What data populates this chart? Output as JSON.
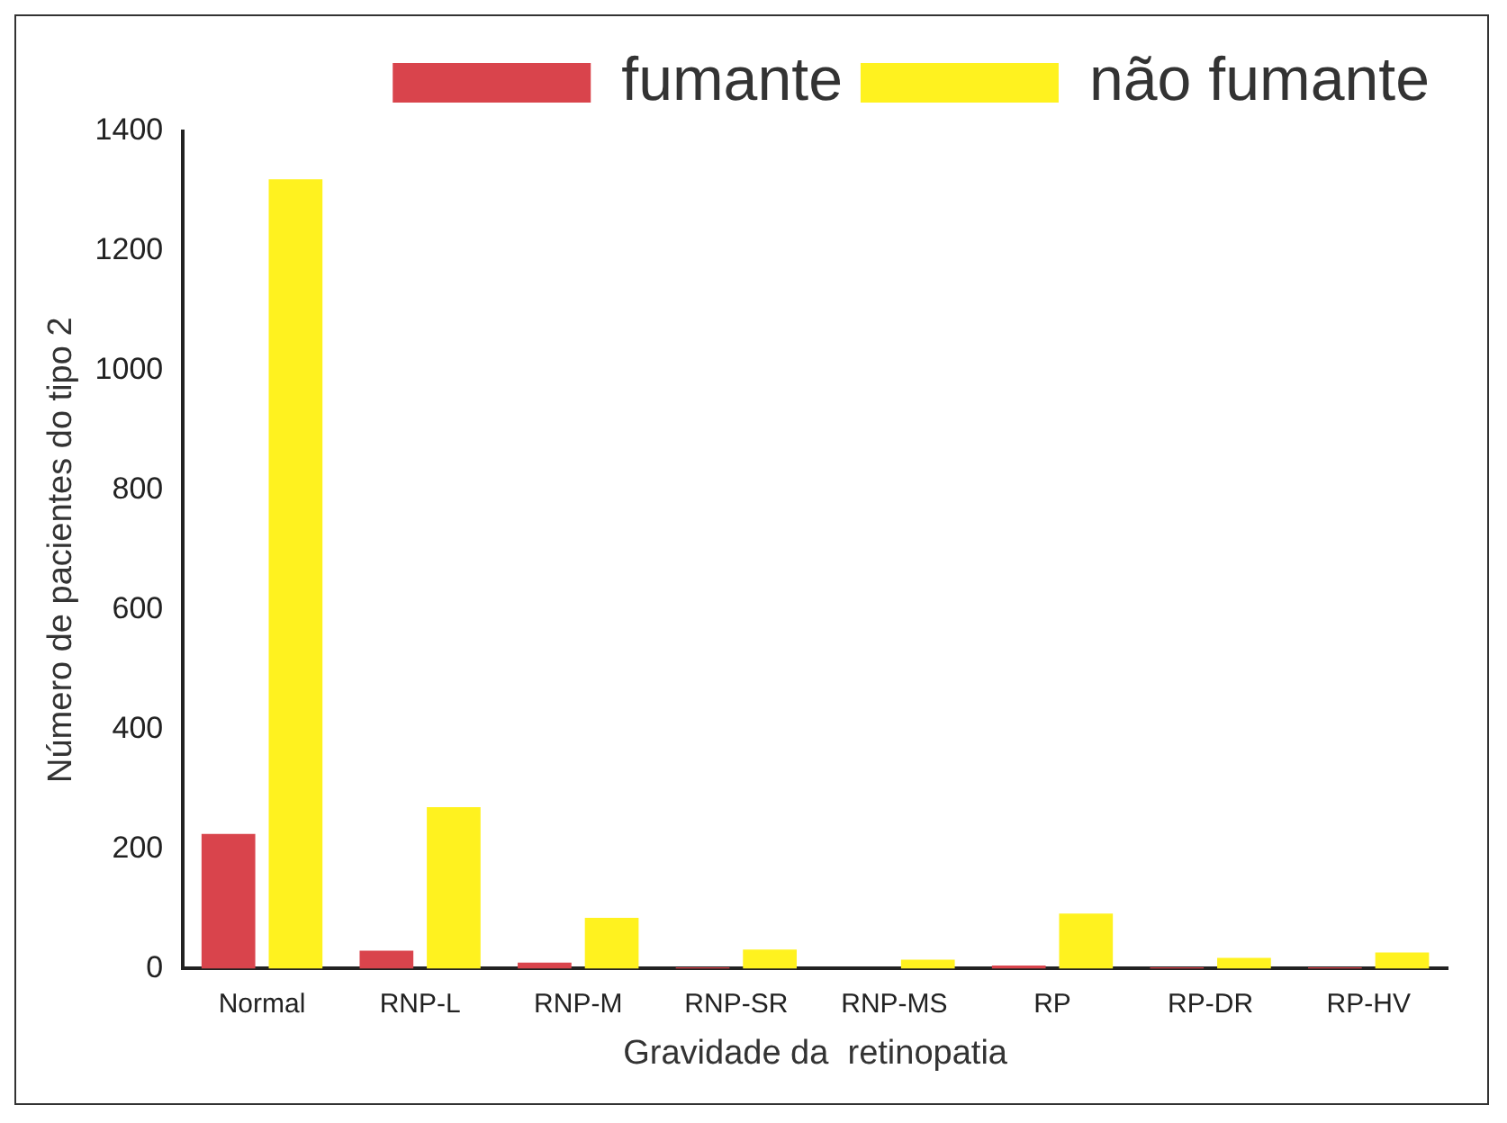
{
  "chart_data": {
    "type": "bar",
    "xlabel": "Gravidade da  retinopatia",
    "ylabel": "Número de pacientes do tipo 2",
    "categories": [
      "Normal",
      "RNP-L",
      "RNP-M",
      "RNP-SR",
      "RNP-MS",
      "RP",
      "RP-DR",
      "RP-HV"
    ],
    "series": [
      {
        "name": "fumante",
        "color": "#d9444c",
        "values": [
          225,
          30,
          10,
          2,
          null,
          5,
          2,
          2
        ]
      },
      {
        "name": "não fumante",
        "color": "#fff21f",
        "values": [
          1320,
          270,
          85,
          32,
          15,
          92,
          18,
          27
        ]
      }
    ],
    "ylim": [
      0,
      1400
    ],
    "yticks": [
      0,
      200,
      400,
      600,
      800,
      1000,
      1200,
      1400
    ],
    "grid": false,
    "legend": "top right"
  }
}
